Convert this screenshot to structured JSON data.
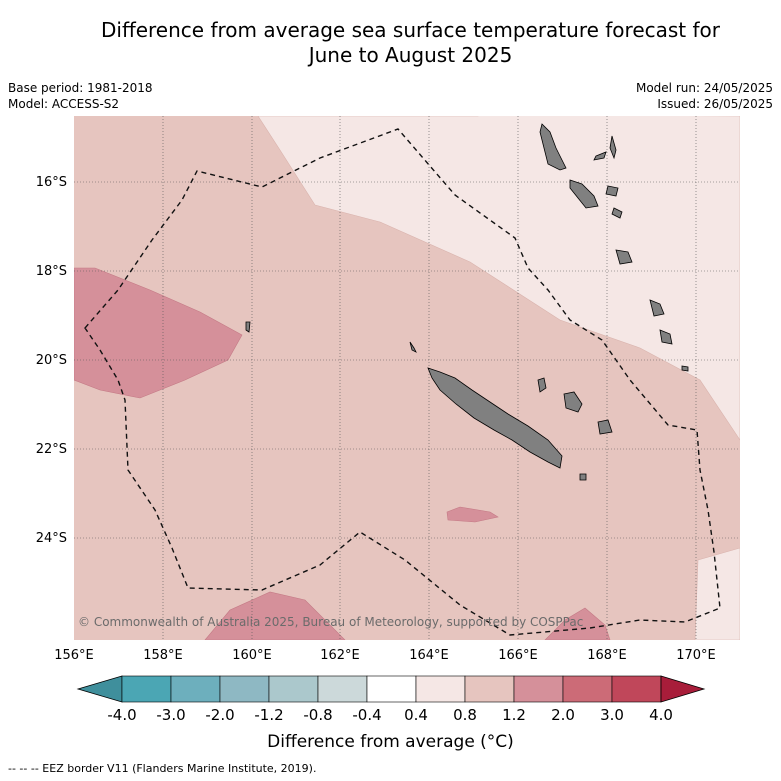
{
  "header": {
    "title_line1": "Difference from average sea surface temperature forecast for",
    "title_line2": "June to August 2025",
    "base_period": "Base period: 1981-2018",
    "model": "Model: ACCESS-S2",
    "model_run": "Model run: 24/05/2025",
    "issued": "Issued: 26/05/2025"
  },
  "map": {
    "lat_labels": [
      "16°S",
      "18°S",
      "20°S",
      "22°S",
      "24°S"
    ],
    "lon_labels": [
      "156°E",
      "158°E",
      "160°E",
      "162°E",
      "164°E",
      "166°E",
      "168°E",
      "170°E"
    ],
    "copyright": "© Commonwealth of Australia 2025, Bureau of Meteorology, supported by COSPPac",
    "land_color": "#808080"
  },
  "colorbar": {
    "tick_labels": [
      "-4.0",
      "-3.0",
      "-2.0",
      "-1.2",
      "-0.8",
      "-0.4",
      "0.4",
      "0.8",
      "1.2",
      "2.0",
      "3.0",
      "4.0"
    ],
    "colors": [
      "#3f8f9c",
      "#4ba6b4",
      "#6dafbd",
      "#8eb8c3",
      "#abc8cc",
      "#ccd9da",
      "#ffffff",
      "#f5e7e5",
      "#e6c5bf",
      "#d5909a",
      "#cc6b77",
      "#c0475a",
      "#a81d3a"
    ],
    "title": "Difference from average (°C)"
  },
  "legend": {
    "eez_note": "-- -- -- EEZ border V11 (Flanders Marine Institute, 2019)."
  }
}
